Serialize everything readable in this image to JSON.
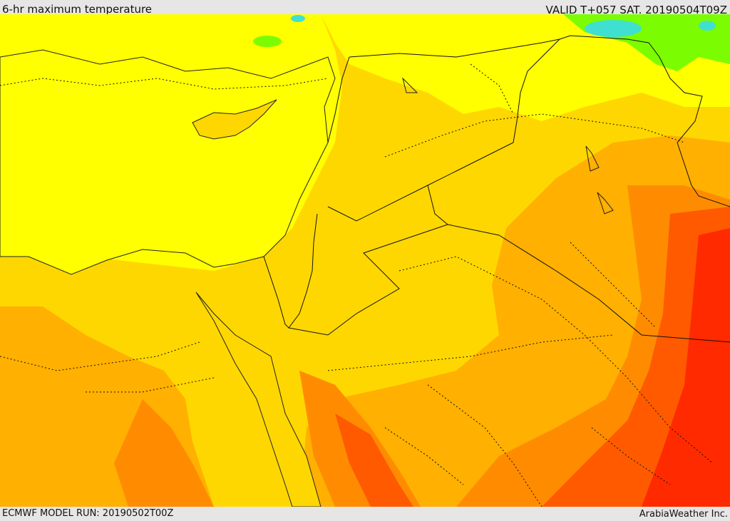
{
  "header": {
    "title": "6-hr maximum temperature",
    "valid": "VALID T+057 SAT. 20190504T09Z"
  },
  "footer": {
    "model_run": "ECMWF MODEL RUN: 20190502T00Z",
    "credit": "ArabiaWeather Inc."
  },
  "colors": {
    "sea_yellow": "#ffff00",
    "light_orange": "#ffd700",
    "orange": "#ffb000",
    "dark_orange": "#ff8c00",
    "red_orange": "#ff5a00",
    "red": "#ff2a00",
    "green_cool": "#7cfc00",
    "cyan_cool": "#40e0d0"
  }
}
